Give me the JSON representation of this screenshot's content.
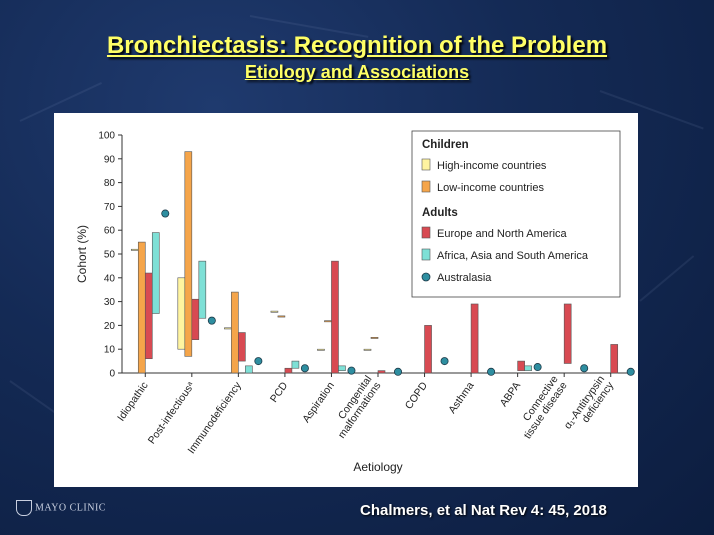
{
  "slide": {
    "title": "Bronchiectasis: Recognition of the Problem",
    "subtitle": "Etiology and Associations",
    "citation": "Chalmers, et al Nat Rev 4: 45, 2018",
    "logo_text": "MAYO CLINIC"
  },
  "chart_data": {
    "type": "bar",
    "xlabel": "Aetiology",
    "ylabel": "Cohort (%)",
    "ylim": [
      0,
      100
    ],
    "yticks": [
      0,
      10,
      20,
      30,
      40,
      50,
      60,
      70,
      80,
      90,
      100
    ],
    "grid": false,
    "legend_position": "top-right",
    "categories": [
      {
        "lines": [
          "Idiopathic"
        ]
      },
      {
        "lines": [
          "Post-infectious"
        ],
        "sup": "a"
      },
      {
        "lines": [
          "Immunodeficiency"
        ]
      },
      {
        "lines": [
          "PCD"
        ]
      },
      {
        "lines": [
          "Aspiration"
        ]
      },
      {
        "lines": [
          "Congenital",
          "malformations"
        ]
      },
      {
        "lines": [
          "COPD"
        ]
      },
      {
        "lines": [
          "Asthma"
        ]
      },
      {
        "lines": [
          "ABPA"
        ]
      },
      {
        "lines": [
          "Connective",
          "tissue disease"
        ]
      },
      {
        "lines": [
          "α₁-Antitrypsin",
          "deficiency"
        ]
      }
    ],
    "legend": {
      "children_heading": "Children",
      "adults_heading": "Adults"
    },
    "series": [
      {
        "name": "High-income countries",
        "group": "Children",
        "color": "#fff4a0",
        "range_low": [
          52,
          10,
          19,
          26,
          10,
          10,
          null,
          null,
          null,
          null,
          null
        ],
        "range_high": [
          52,
          40,
          19,
          26,
          10,
          10,
          null,
          null,
          null,
          null,
          null
        ]
      },
      {
        "name": "Low-income countries",
        "group": "Children",
        "color": "#f5a54a",
        "range_low": [
          null,
          7,
          null,
          24,
          22,
          15,
          null,
          null,
          null,
          null,
          null
        ],
        "range_high": [
          55,
          93,
          34,
          24,
          22,
          15,
          null,
          null,
          null,
          null,
          null
        ]
      },
      {
        "name": "Europe and North America",
        "group": "Adults",
        "color": "#d84a52",
        "range_low": [
          6,
          14,
          5,
          null,
          null,
          null,
          null,
          null,
          1,
          4,
          null
        ],
        "range_high": [
          42,
          31,
          17,
          2,
          47,
          1,
          20,
          29,
          5,
          29,
          12
        ]
      },
      {
        "name": "Africa, Asia and South America",
        "group": "Adults",
        "color": "#7ee0d6",
        "range_low": [
          25,
          23,
          null,
          2,
          1,
          null,
          null,
          null,
          1,
          null,
          null
        ],
        "range_high": [
          59,
          47,
          3,
          5,
          3,
          null,
          null,
          null,
          3,
          null,
          null
        ]
      },
      {
        "name": "Australasia",
        "group": "Adults",
        "color": "#2e8ea0",
        "type": "point",
        "values": [
          67,
          22,
          5,
          2,
          1,
          0.5,
          5,
          0.5,
          2.5,
          2,
          0.5
        ]
      }
    ]
  }
}
